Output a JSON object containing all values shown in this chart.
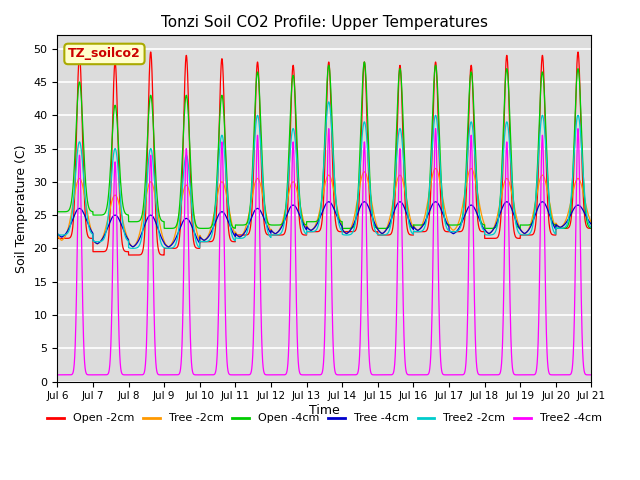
{
  "title": "Tonzi Soil CO2 Profile: Upper Temperatures",
  "ylabel": "Soil Temperature (C)",
  "xlabel": "Time",
  "watermark": "TZ_soilco2",
  "ylim": [
    0,
    52
  ],
  "yticks": [
    0,
    5,
    10,
    15,
    20,
    25,
    30,
    35,
    40,
    45,
    50
  ],
  "x_tick_labels": [
    "Jul 6",
    "Jul 7",
    "Jul 8",
    "Jul 9",
    "Jul 10",
    "Jul 11",
    "Jul 12",
    "Jul 13",
    "Jul 14",
    "Jul 15",
    "Jul 16",
    "Jul 17",
    "Jul 18",
    "Jul 19",
    "Jul 20",
    "Jul 21"
  ],
  "series": [
    {
      "label": "Open -2cm",
      "color": "#ff0000"
    },
    {
      "label": "Tree -2cm",
      "color": "#ff9900"
    },
    {
      "label": "Open -4cm",
      "color": "#00cc00"
    },
    {
      "label": "Tree -4cm",
      "color": "#0000cc"
    },
    {
      "label": "Tree2 -2cm",
      "color": "#00cccc"
    },
    {
      "label": "Tree2 -4cm",
      "color": "#ff00ff"
    }
  ],
  "bg_color": "#dcdcdc",
  "grid_color": "#ffffff",
  "num_days": 15,
  "points_per_day": 288,
  "day_peaks": {
    "Open -2cm": [
      49,
      48,
      49.5,
      49,
      48.5,
      48,
      47.5,
      48,
      48,
      47.5,
      48,
      47.5,
      49,
      49,
      49.5
    ],
    "Tree -2cm": [
      30.5,
      28,
      30,
      29.5,
      30,
      30.5,
      30,
      31,
      31.5,
      31,
      32,
      32,
      30.5,
      31,
      30.5
    ],
    "Open -4cm": [
      45,
      41.5,
      43,
      43,
      43,
      46.5,
      46,
      47.5,
      48,
      47,
      47.5,
      46.5,
      47,
      46.5,
      47
    ],
    "Tree -4cm": [
      26,
      25,
      25,
      24.5,
      25.5,
      26,
      26.5,
      27,
      27,
      27,
      27,
      26.5,
      27,
      27,
      26.5
    ],
    "Tree2 -2cm": [
      36,
      35,
      35,
      34,
      37,
      40,
      38,
      42,
      39,
      38,
      40,
      39,
      39,
      40,
      40
    ],
    "Tree2 -4cm": [
      34,
      33,
      34,
      35,
      36,
      37,
      36,
      38,
      36,
      35,
      38,
      37,
      36,
      37,
      38
    ]
  },
  "day_mins": {
    "Open -2cm": [
      21.5,
      19.5,
      19,
      20,
      21,
      22,
      22,
      22.5,
      22.5,
      22,
      22.5,
      22.5,
      21.5,
      22,
      23
    ],
    "Tree -2cm": [
      21,
      20.5,
      20,
      20,
      21,
      21.5,
      22,
      22.5,
      22,
      22,
      22.5,
      22.5,
      22,
      22,
      23
    ],
    "Open -4cm": [
      25.5,
      25,
      24,
      23,
      23,
      23.5,
      23.5,
      24,
      23,
      23,
      23.5,
      23.5,
      23,
      23.5,
      23
    ],
    "Tree -4cm": [
      21.5,
      20.5,
      20,
      20,
      21,
      21.5,
      22,
      22.5,
      22,
      22,
      22.5,
      22,
      22,
      22,
      23
    ],
    "Tree2 -2cm": [
      22,
      21,
      20,
      20,
      21,
      21.5,
      22,
      22.5,
      22,
      22,
      22.5,
      22.5,
      22,
      22,
      23
    ],
    "Tree2 -4cm": [
      1.0,
      1.0,
      1.0,
      1.0,
      1.0,
      1.0,
      1.0,
      1.0,
      1.0,
      1.0,
      1.0,
      1.0,
      1.0,
      1.0,
      1.0
    ]
  },
  "peak_phase": 0.62,
  "sharpness": {
    "Open -2cm": 0.08,
    "Tree -2cm": 0.18,
    "Open -4cm": 0.1,
    "Tree -4cm": 0.2,
    "Tree2 -2cm": 0.12,
    "Tree2 -4cm": 0.06
  }
}
